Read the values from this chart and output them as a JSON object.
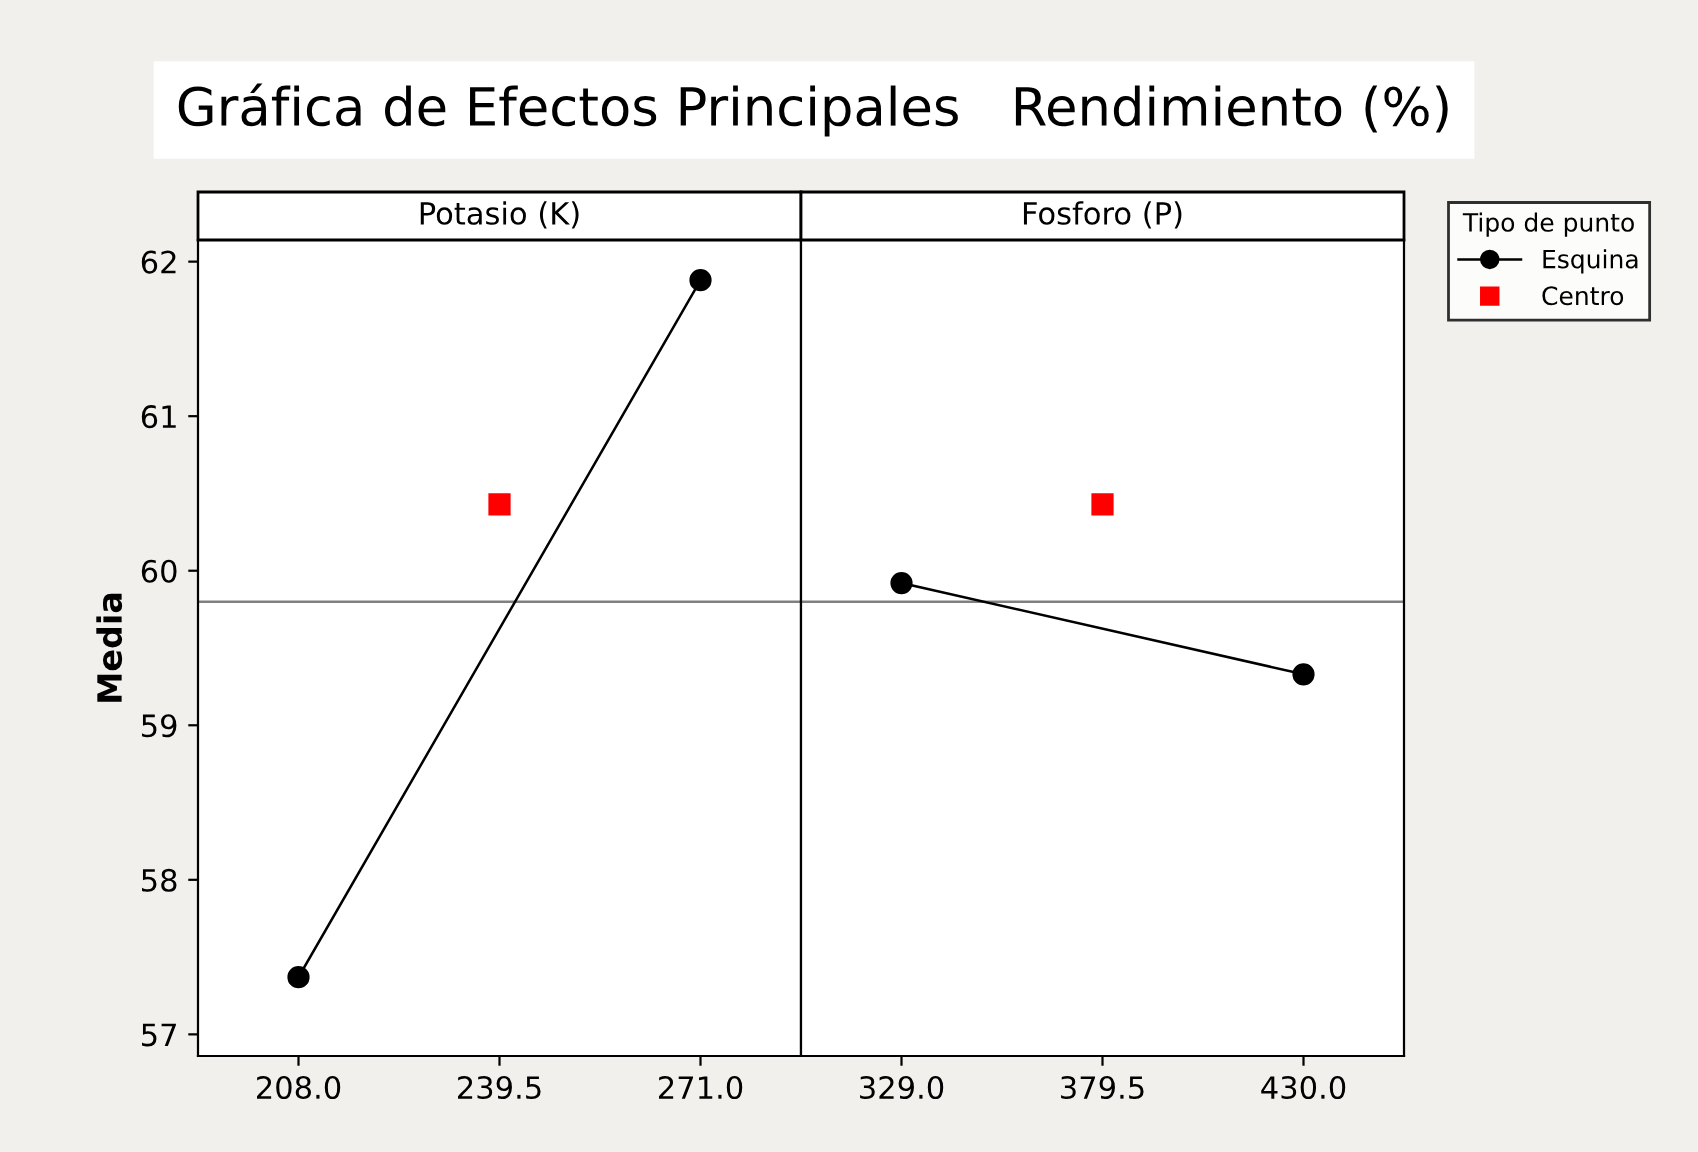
{
  "chart_data": [
    {
      "type": "line",
      "title": "Gráfica de Efectos Principales   Rendimiento (%)",
      "subtitle": "Potasio (K)",
      "ylabel": "Media",
      "xlim": [
        192.25,
        286.75
      ],
      "xticks": [
        {
          "value": 208,
          "label": "208.0"
        },
        {
          "value": 239.5,
          "label": "239.5"
        },
        {
          "value": 271,
          "label": "271.0"
        }
      ],
      "ylim": [
        56.86,
        62.14
      ],
      "yticks": [
        57,
        58,
        59,
        60,
        61,
        62
      ],
      "grid": false,
      "legend": "right",
      "legend_title": "Tipo de punto",
      "ref_lines": [
        {
          "axis": "y",
          "value": 59.8,
          "color": "#808080"
        }
      ],
      "series": [
        {
          "name": "Esquina",
          "marker": "circle",
          "color": "#000000",
          "x": [
            208,
            271
          ],
          "values": [
            57.37,
            61.88
          ]
        },
        {
          "name": "Centro",
          "type": "scatter",
          "marker": "square",
          "color": "#ff0000",
          "x": [
            239.5
          ],
          "values": [
            60.43
          ]
        }
      ]
    },
    {
      "type": "line",
      "subtitle": "Fosforo (P)",
      "xlim": [
        303.75,
        455.25
      ],
      "xticks": [
        {
          "value": 329,
          "label": "329.0"
        },
        {
          "value": 379.5,
          "label": "379.5"
        },
        {
          "value": 430,
          "label": "430.0"
        }
      ],
      "ylim": [
        56.86,
        62.14
      ],
      "yticks": [
        57,
        58,
        59,
        60,
        61,
        62
      ],
      "grid": false,
      "tick_labels": "x",
      "ref_lines": [
        {
          "axis": "y",
          "value": 59.8,
          "color": "#808080"
        }
      ],
      "series": [
        {
          "marker": "circle",
          "color": "#000000",
          "x": [
            329,
            430
          ],
          "values": [
            59.92,
            59.33
          ]
        },
        {
          "type": "scatter",
          "marker": "square",
          "color": "#ff0000",
          "x": [
            379.5
          ],
          "values": [
            60.43
          ]
        }
      ]
    }
  ]
}
